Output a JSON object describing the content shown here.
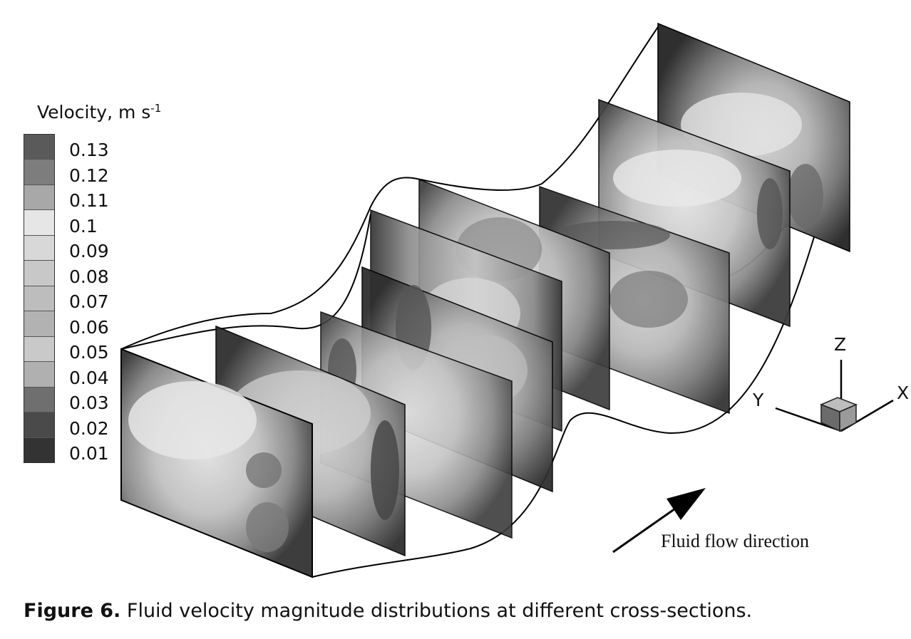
{
  "legend": {
    "title": "Velocity, m s",
    "title_superscript": "-1",
    "levels": [
      "0.13",
      "0.12",
      "0.11",
      "0.1",
      "0.09",
      "0.08",
      "0.07",
      "0.06",
      "0.05",
      "0.04",
      "0.03",
      "0.02",
      "0.01"
    ],
    "colors": [
      "#5a5a5a",
      "#7d7d7d",
      "#a8a8a8",
      "#e6e6e6",
      "#d8d8d8",
      "#c8c8c8",
      "#bdbdbd",
      "#b2b2b2",
      "#c9c9c9",
      "#b0b0b0",
      "#6f6f6f",
      "#4a4a4a",
      "#333333"
    ]
  },
  "axes": {
    "x_label": "X",
    "y_label": "Y",
    "z_label": "Z"
  },
  "flow_label": "Fluid flow direction",
  "caption": {
    "prefix": "Figure 6.",
    "text": " Fluid velocity magnitude distributions at different cross-sections."
  }
}
